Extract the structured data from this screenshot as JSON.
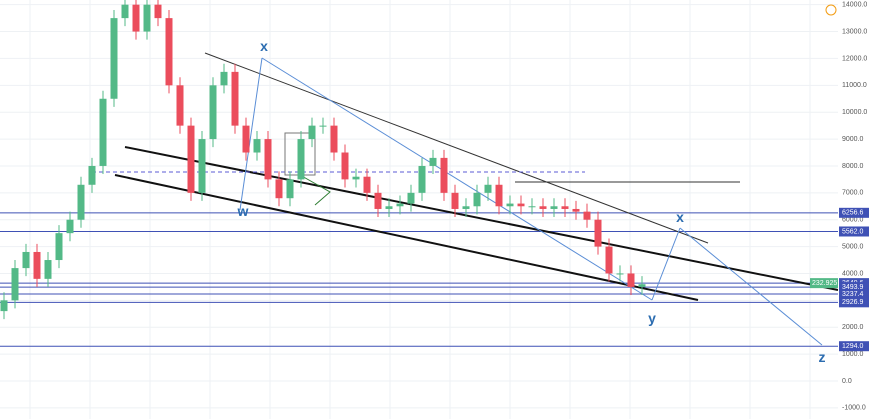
{
  "chart_data": {
    "type": "candlestick",
    "open": [
      2600,
      3000,
      4200,
      4800,
      3800,
      4500,
      5500,
      6000,
      7300,
      8000,
      10500,
      13500,
      14000,
      13000,
      14000,
      13500,
      11000,
      9500,
      7000,
      9000,
      11000,
      11500,
      9500,
      8500,
      9000,
      7500,
      6800,
      7500,
      9000,
      9500,
      9500,
      8500,
      7500,
      7600,
      7000,
      6400,
      6500,
      6600,
      7000,
      8000,
      8300,
      7000,
      6400,
      6500,
      7000,
      7300,
      6500,
      6600,
      6500,
      6500,
      6400,
      6500,
      6400,
      6300,
      6000,
      5000,
      4000,
      4000,
      3500
    ],
    "high": [
      3300,
      4500,
      5100,
      5100,
      4800,
      5800,
      6300,
      7600,
      8300,
      10800,
      13800,
      14300,
      14300,
      14300,
      14300,
      13800,
      11300,
      9800,
      9300,
      11300,
      11800,
      11800,
      9800,
      9300,
      9300,
      7800,
      7800,
      9300,
      9800,
      9800,
      9800,
      8800,
      7900,
      7900,
      7300,
      6800,
      6900,
      7300,
      8300,
      8600,
      8600,
      7300,
      6800,
      7300,
      7600,
      7600,
      6900,
      6900,
      6800,
      6800,
      6800,
      6800,
      6700,
      6600,
      6300,
      5300,
      4300,
      4300,
      3900
    ],
    "low": [
      2300,
      2700,
      3900,
      3500,
      3500,
      4200,
      5200,
      5700,
      7000,
      7700,
      10200,
      13200,
      12700,
      12700,
      13200,
      10700,
      9200,
      6700,
      6700,
      8700,
      10700,
      9200,
      8200,
      8200,
      7200,
      6500,
      6500,
      7200,
      8700,
      9200,
      8200,
      7200,
      7200,
      6700,
      6100,
      6100,
      6200,
      6300,
      6700,
      7700,
      6700,
      6100,
      6100,
      6200,
      6700,
      6200,
      6200,
      6200,
      6200,
      6100,
      6100,
      6100,
      6000,
      5700,
      4700,
      3700,
      3700,
      3200,
      3200
    ],
    "close": [
      3000,
      4200,
      4800,
      3800,
      4500,
      5500,
      6000,
      7300,
      8000,
      10500,
      13500,
      14000,
      13000,
      14000,
      13500,
      11000,
      9500,
      7000,
      9000,
      11000,
      11500,
      9500,
      8500,
      9000,
      7500,
      6800,
      7500,
      9000,
      9500,
      9500,
      8500,
      7500,
      7600,
      7000,
      6400,
      6500,
      6600,
      7000,
      8000,
      8300,
      7000,
      6400,
      6500,
      7000,
      7300,
      6500,
      6600,
      6500,
      6500,
      6400,
      6500,
      6400,
      6300,
      6000,
      5000,
      4000,
      4000,
      3500,
      3600
    ],
    "up_color": "#53b987",
    "down_color": "#eb4d5c",
    "ylim": [
      -1414,
      14174
    ],
    "yticks": [
      {
        "value": -1000,
        "label": "-1000.0"
      },
      {
        "value": 0,
        "label": "0.0"
      },
      {
        "value": 1000,
        "label": "1000.0"
      },
      {
        "value": 2000,
        "label": "2000.0"
      },
      {
        "value": 3000,
        "label": "3000.0"
      },
      {
        "value": 4000,
        "label": "4000.0"
      },
      {
        "value": 5000,
        "label": "5000.0"
      },
      {
        "value": 6000,
        "label": "6000.0"
      },
      {
        "value": 7000,
        "label": "7000.0"
      },
      {
        "value": 8000,
        "label": "8000.0"
      },
      {
        "value": 9000,
        "label": "9000.0"
      },
      {
        "value": 10000,
        "label": "10000.0"
      },
      {
        "value": 11000,
        "label": "11000.0"
      },
      {
        "value": 12000,
        "label": "12000.0"
      },
      {
        "value": 13000,
        "label": "13000.0"
      },
      {
        "value": 14000,
        "label": "14000.0"
      }
    ],
    "grid": true,
    "levels": [
      6256.6,
      {
        "value": 5562,
        "label": "5562.0"
      },
      3640.6,
      3493.9,
      3237.4,
      2926.9,
      {
        "value": 1294,
        "label": "1294.0"
      }
    ],
    "level_color": "#3f51b5",
    "price_tag": "232.925",
    "annotations": [
      "x",
      "w",
      "x",
      "y",
      "z"
    ]
  }
}
